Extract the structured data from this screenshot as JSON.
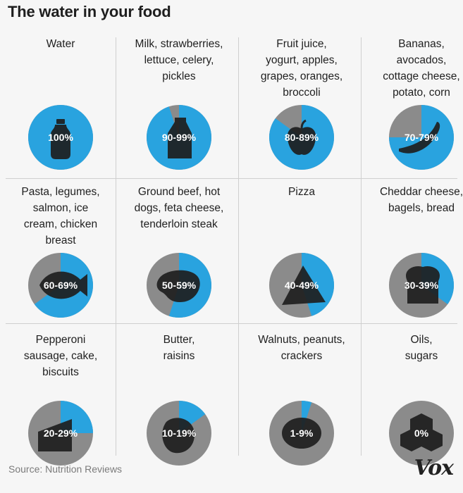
{
  "title": "The water in your food",
  "source": "Source: Nutrition Reviews",
  "logo": "Vox",
  "colors": {
    "water": "#29a3df",
    "rest": "#8b8b8b",
    "icon": "#1e1e1e",
    "background": "#f6f6f6"
  },
  "chart_data": {
    "type": "pie",
    "title": "The water in your food",
    "series_meaning": "share of water by weight",
    "items": [
      {
        "label": "Water",
        "range": "100%",
        "value": 100,
        "icon": "water-bottle-icon"
      },
      {
        "label": "Milk, strawberries,\nlettuce, celery,\npickles",
        "range": "90-99%",
        "value": 95,
        "icon": "milk-carton-icon"
      },
      {
        "label": "Fruit juice,\nyogurt, apples,\ngrapes, oranges,\nbroccoli",
        "range": "80-89%",
        "value": 85,
        "icon": "apple-icon"
      },
      {
        "label": "Bananas,\navocados,\ncottage cheese,\npotato, corn",
        "range": "70-79%",
        "value": 75,
        "icon": "banana-icon"
      },
      {
        "label": "Pasta, legumes,\nsalmon, ice\ncream, chicken\nbreast",
        "range": "60-69%",
        "value": 65,
        "icon": "fish-icon"
      },
      {
        "label": "Ground beef, hot\ndogs, feta cheese,\ntenderloin steak",
        "range": "50-59%",
        "value": 55,
        "icon": "steak-icon"
      },
      {
        "label": "Pizza",
        "range": "40-49%",
        "value": 45,
        "icon": "pizza-slice-icon"
      },
      {
        "label": "Cheddar cheese,\nbagels, bread",
        "range": "30-39%",
        "value": 35,
        "icon": "bread-slice-icon"
      },
      {
        "label": "Pepperoni\nsausage, cake,\nbiscuits",
        "range": "20-29%",
        "value": 25,
        "icon": "cake-slice-icon"
      },
      {
        "label": "Butter,\nraisins",
        "range": "10-19%",
        "value": 15,
        "icon": "raisin-icon"
      },
      {
        "label": "Walnuts, peanuts,\ncrackers",
        "range": "1-9%",
        "value": 5,
        "icon": "walnut-icon"
      },
      {
        "label": "Oils,\nsugars",
        "range": "0%",
        "value": 0,
        "icon": "sugar-cubes-icon"
      }
    ]
  }
}
